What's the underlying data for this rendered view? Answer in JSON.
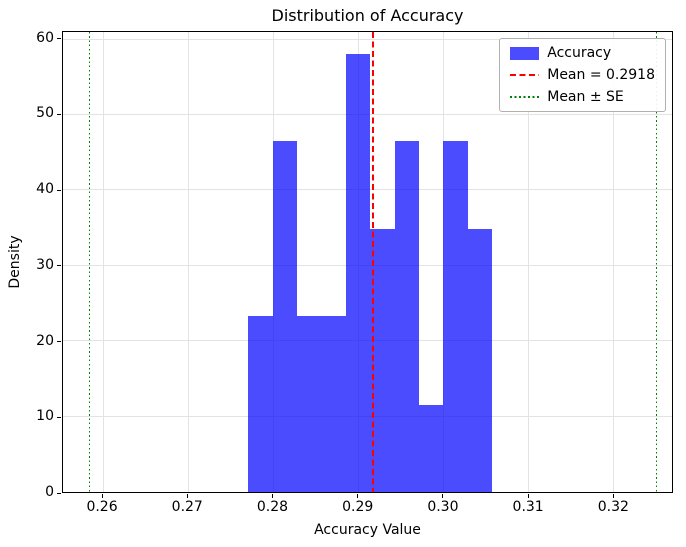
{
  "chart_data": {
    "type": "bar",
    "title": "Distribution of Accuracy",
    "xlabel": "Accuracy Value",
    "ylabel": "Density",
    "xlim": [
      0.2553,
      0.327
    ],
    "ylim": [
      0,
      61.0
    ],
    "grid": true,
    "xticks": {
      "values": [
        0.26,
        0.27,
        0.28,
        0.29,
        0.3,
        0.31,
        0.32
      ],
      "labels": [
        "0.26",
        "0.27",
        "0.28",
        "0.29",
        "0.30",
        "0.31",
        "0.32"
      ]
    },
    "yticks": {
      "values": [
        0,
        10,
        20,
        30,
        40,
        50,
        60
      ],
      "labels": [
        "0",
        "10",
        "20",
        "30",
        "40",
        "50",
        "60"
      ]
    },
    "histogram": {
      "series_name": "Accuracy",
      "bin_edges": [
        0.27713,
        0.28,
        0.28287,
        0.28574,
        0.28861,
        0.29148,
        0.29435,
        0.29722,
        0.30009,
        0.30296,
        0.30583
      ],
      "densities": [
        23.3,
        46.5,
        23.3,
        23.3,
        58.1,
        34.9,
        46.5,
        11.6,
        46.5,
        34.9
      ],
      "color": "rgba(0,0,255,0.7)"
    },
    "mean_line": {
      "value": 0.2918,
      "color": "#ff0000",
      "style": "dashed"
    },
    "se_lines": {
      "values": [
        0.2584,
        0.3252
      ],
      "color": "#008000",
      "style": "dotted"
    },
    "legend": [
      {
        "label": "Accuracy",
        "marker": "patch",
        "color": "rgba(0,0,255,0.7)"
      },
      {
        "label": "Mean = 0.2918",
        "marker": "dashed-line",
        "color": "#ff0000"
      },
      {
        "label": "Mean ± SE",
        "marker": "dotted-line",
        "color": "#008000"
      }
    ]
  }
}
